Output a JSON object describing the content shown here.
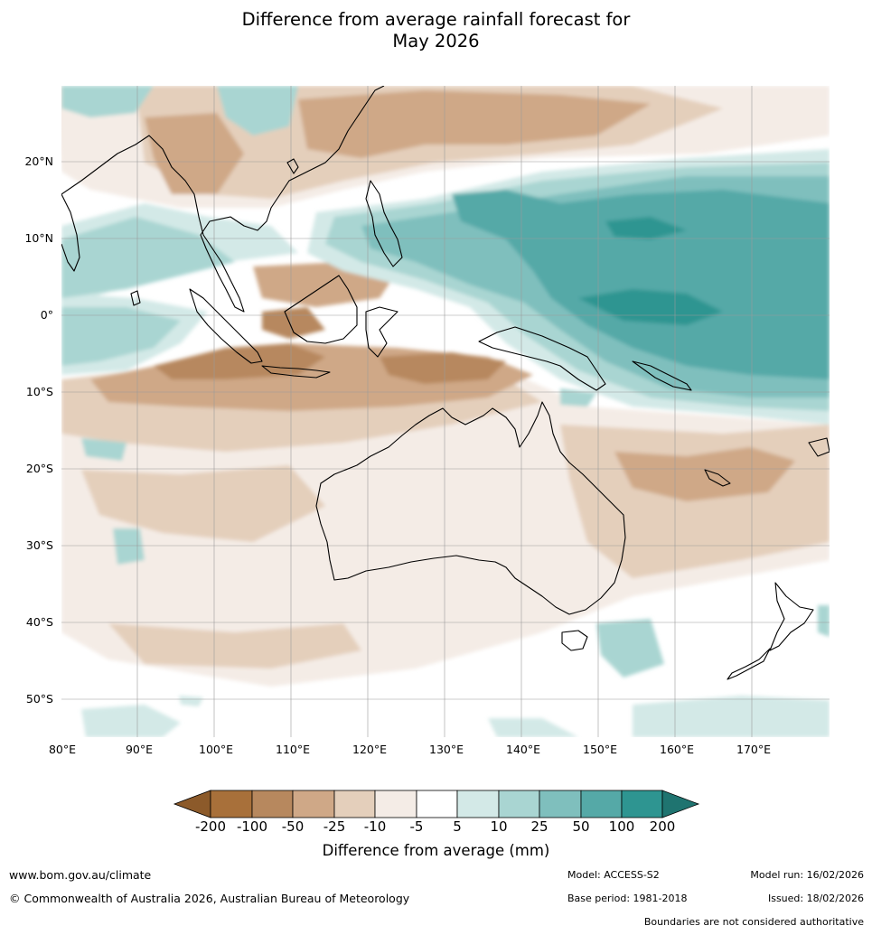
{
  "title_line1": "Difference from average rainfall forecast for",
  "title_line2": "May 2026",
  "map": {
    "lon_range": [
      80,
      180
    ],
    "lat_range": [
      -55,
      30
    ],
    "lat_labels": [
      "20°N",
      "10°N",
      "0°",
      "10°S",
      "20°S",
      "30°S",
      "40°S",
      "50°S"
    ],
    "lon_labels": [
      "80°E",
      "90°E",
      "100°E",
      "110°E",
      "120°E",
      "130°E",
      "140°E",
      "150°E",
      "160°E",
      "170°E"
    ]
  },
  "colorbar": {
    "label": "Difference from average (mm)",
    "ticks": [
      "-200",
      "-100",
      "-50",
      "-25",
      "-10",
      "-5",
      "5",
      "10",
      "25",
      "50",
      "100",
      "200"
    ],
    "colors": [
      "#a8703a",
      "#b7885e",
      "#cfa887",
      "#e4cfbb",
      "#f4ece6",
      "#ffffff",
      "#d3e9e7",
      "#a9d5d2",
      "#7fbfbd",
      "#55a9a7",
      "#2e9591"
    ],
    "under_color": "#8c5a2a",
    "over_color": "#1f7470"
  },
  "footer": {
    "website": "www.bom.gov.au/climate",
    "copyright": "© Commonwealth of Australia 2026, Australian Bureau of Meteorology",
    "model": "Model: ACCESS-S2",
    "base_period": "Base period: 1981-2018",
    "model_run": "Model run: 16/02/2026",
    "issued": "Issued: 18/02/2026",
    "disclaimer": "Boundaries are not considered authoritative"
  }
}
